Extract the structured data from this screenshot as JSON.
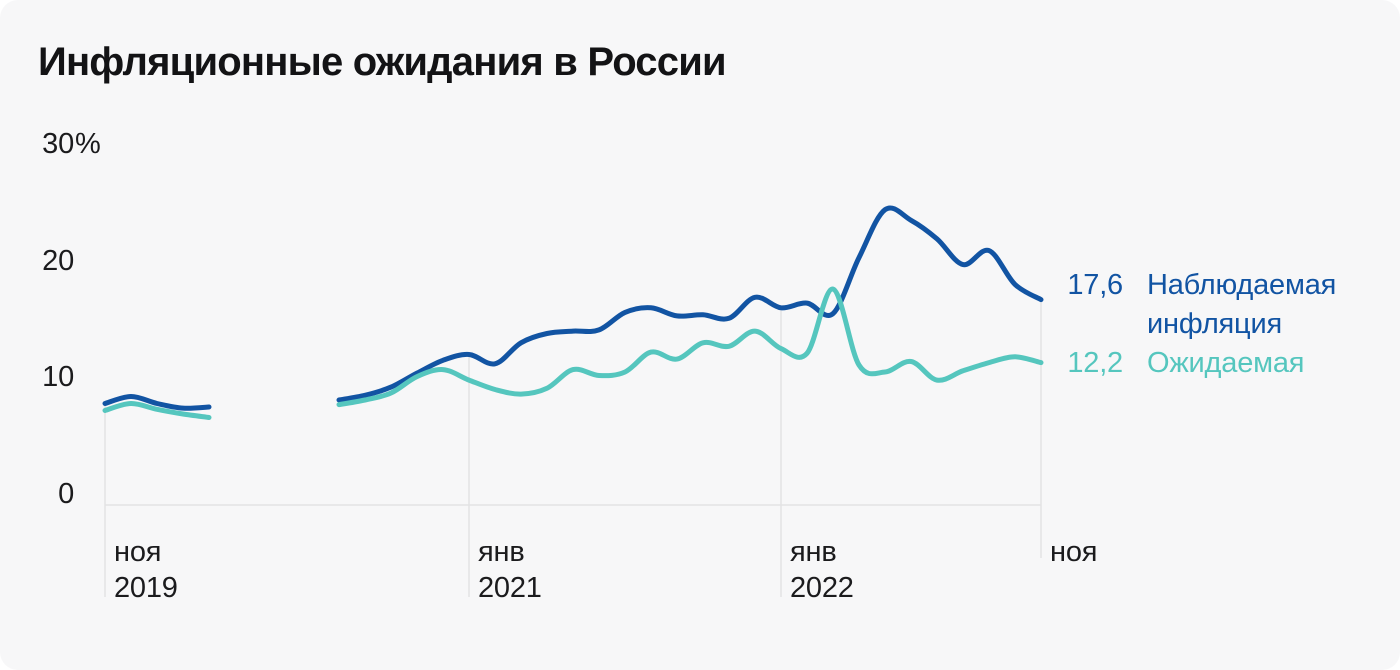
{
  "chart_data": {
    "type": "line",
    "title": "Инфляционные ожидания в России",
    "unit": "%",
    "x_months": [
      "ноя 2019",
      "дек 2019",
      "янв 2020",
      "фев 2020",
      "мар 2020",
      "апр 2020",
      "май 2020",
      "июн 2020",
      "июл 2020",
      "авг 2020",
      "сен 2020",
      "окт 2020",
      "ноя 2020",
      "дек 2020",
      "янв 2021",
      "фев 2021",
      "мар 2021",
      "апр 2021",
      "май 2021",
      "июн 2021",
      "июл 2021",
      "авг 2021",
      "сен 2021",
      "окт 2021",
      "ноя 2021",
      "дек 2021",
      "янв 2022",
      "фев 2022",
      "мар 2022",
      "апр 2022",
      "май 2022",
      "июн 2022",
      "июл 2022",
      "авг 2022",
      "сен 2022",
      "окт 2022",
      "ноя 2022"
    ],
    "series": [
      {
        "id": "observed",
        "name": "Наблюдаемая инфляция",
        "color": "#1254A3",
        "end_label": "17,6",
        "values": [
          8.7,
          9.3,
          8.7,
          8.3,
          8.4,
          null,
          null,
          null,
          null,
          9.0,
          9.4,
          10.1,
          11.3,
          12.4,
          12.9,
          12.1,
          13.9,
          14.7,
          14.9,
          15.0,
          16.5,
          16.9,
          16.2,
          16.3,
          16.0,
          17.8,
          16.9,
          17.3,
          16.4,
          21.2,
          25.3,
          24.4,
          22.8,
          20.6,
          21.8,
          18.9,
          17.6
        ]
      },
      {
        "id": "expected",
        "name": "Ожидаемая",
        "color": "#55C6BE",
        "end_label": "12,2",
        "values": [
          8.1,
          8.7,
          8.2,
          7.8,
          7.5,
          null,
          null,
          null,
          null,
          8.6,
          9.0,
          9.6,
          11.0,
          11.6,
          10.7,
          9.9,
          9.5,
          10.0,
          11.6,
          11.1,
          11.4,
          13.1,
          12.5,
          13.9,
          13.6,
          14.9,
          13.4,
          13.0,
          18.5,
          12.0,
          11.4,
          12.3,
          10.7,
          11.5,
          12.2,
          12.7,
          12.2
        ]
      }
    ],
    "y_axis": {
      "min": 0,
      "max": 30,
      "ticks": [
        {
          "v": 0,
          "t": "0"
        },
        {
          "v": 10,
          "t": "10"
        },
        {
          "v": 20,
          "t": "20"
        },
        {
          "v": 30,
          "t": "30",
          "suffix": "%"
        }
      ]
    },
    "x_axis": {
      "ticks": [
        {
          "index": 0,
          "month": "ноя",
          "year": "2019"
        },
        {
          "index": 14,
          "month": "янв",
          "year": "2021"
        },
        {
          "index": 26,
          "month": "янв",
          "year": "2022"
        },
        {
          "index": 36,
          "month": "ноя",
          "year": ""
        }
      ]
    },
    "data_gap": {
      "from": "апр 2020",
      "to": "июл 2020"
    },
    "grid": "vertical-tick-lines-and-zero-baseline",
    "legend_position": "right",
    "colors": {
      "grid": "#E3E3E4",
      "background": "#F7F7F8",
      "text": "#1B1B1D"
    }
  },
  "legend": {
    "rows": [
      {
        "value": "17,6",
        "label": "Наблюдаемая инфляция",
        "color": "#1254A3"
      },
      {
        "value": "12,2",
        "label": "Ожидаемая",
        "color": "#55C6BE"
      }
    ]
  }
}
